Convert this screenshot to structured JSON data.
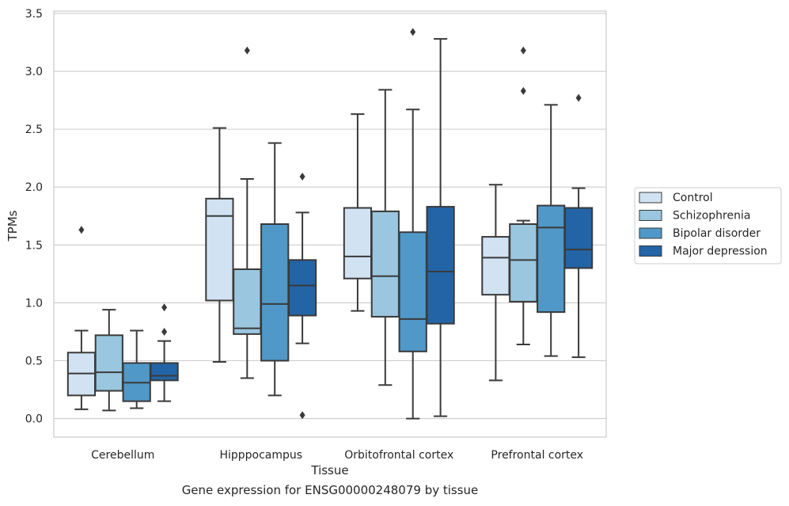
{
  "chart_data": {
    "type": "box",
    "title": "",
    "caption": "Gene expression for ENSG00000248079 by tissue",
    "xlabel": "Tissue",
    "ylabel": "TPMs",
    "ylim": [
      -0.16,
      3.52
    ],
    "yticks": [
      0.0,
      0.5,
      1.0,
      1.5,
      2.0,
      2.5,
      3.0,
      3.5
    ],
    "ytick_labels": [
      "0.0",
      "0.5",
      "1.0",
      "1.5",
      "2.0",
      "2.5",
      "3.0",
      "3.5"
    ],
    "grid": "horizontal",
    "legend_position": "right",
    "categories": [
      "Cerebellum",
      "Hipppocampus",
      "Orbitofrontal cortex",
      "Prefrontal cortex"
    ],
    "series": [
      {
        "name": "Control",
        "color": "#d1e2f2",
        "boxes": [
          {
            "whislo": 0.08,
            "q1": 0.2,
            "med": 0.39,
            "q3": 0.57,
            "whishi": 0.76,
            "fliers": [
              1.63
            ]
          },
          {
            "whislo": 0.49,
            "q1": 1.02,
            "med": 1.75,
            "q3": 1.9,
            "whishi": 2.51,
            "fliers": []
          },
          {
            "whislo": 0.93,
            "q1": 1.21,
            "med": 1.4,
            "q3": 1.82,
            "whishi": 2.63,
            "fliers": []
          },
          {
            "whislo": 0.33,
            "q1": 1.07,
            "med": 1.39,
            "q3": 1.57,
            "whishi": 2.02,
            "fliers": []
          }
        ]
      },
      {
        "name": "Schizophrenia",
        "color": "#9ac7df",
        "boxes": [
          {
            "whislo": 0.07,
            "q1": 0.24,
            "med": 0.4,
            "q3": 0.72,
            "whishi": 0.94,
            "fliers": []
          },
          {
            "whislo": 0.35,
            "q1": 0.73,
            "med": 0.78,
            "q3": 1.29,
            "whishi": 2.07,
            "fliers": [
              3.18
            ]
          },
          {
            "whislo": 0.29,
            "q1": 0.88,
            "med": 1.23,
            "q3": 1.79,
            "whishi": 2.84,
            "fliers": []
          },
          {
            "whislo": 0.64,
            "q1": 1.01,
            "med": 1.37,
            "q3": 1.68,
            "whishi": 1.71,
            "fliers": [
              3.18,
              2.83
            ]
          }
        ]
      },
      {
        "name": "Bipolar disorder",
        "color": "#5098c8",
        "boxes": [
          {
            "whislo": 0.09,
            "q1": 0.15,
            "med": 0.31,
            "q3": 0.48,
            "whishi": 0.76,
            "fliers": []
          },
          {
            "whislo": 0.2,
            "q1": 0.5,
            "med": 0.99,
            "q3": 1.68,
            "whishi": 2.38,
            "fliers": []
          },
          {
            "whislo": 0.0,
            "q1": 0.58,
            "med": 0.86,
            "q3": 1.61,
            "whishi": 2.67,
            "fliers": [
              3.34
            ]
          },
          {
            "whislo": 0.54,
            "q1": 0.92,
            "med": 1.65,
            "q3": 1.84,
            "whishi": 2.71,
            "fliers": []
          }
        ]
      },
      {
        "name": "Major depression",
        "color": "#2364a6",
        "boxes": [
          {
            "whislo": 0.15,
            "q1": 0.33,
            "med": 0.37,
            "q3": 0.48,
            "whishi": 0.67,
            "fliers": [
              0.96,
              0.75
            ]
          },
          {
            "whislo": 0.65,
            "q1": 0.89,
            "med": 1.15,
            "q3": 1.37,
            "whishi": 1.78,
            "fliers": [
              2.09,
              0.03
            ]
          },
          {
            "whislo": 0.02,
            "q1": 0.82,
            "med": 1.27,
            "q3": 1.83,
            "whishi": 3.28,
            "fliers": []
          },
          {
            "whislo": 0.53,
            "q1": 1.3,
            "med": 1.46,
            "q3": 1.82,
            "whishi": 1.99,
            "fliers": [
              2.77
            ]
          }
        ]
      }
    ]
  }
}
